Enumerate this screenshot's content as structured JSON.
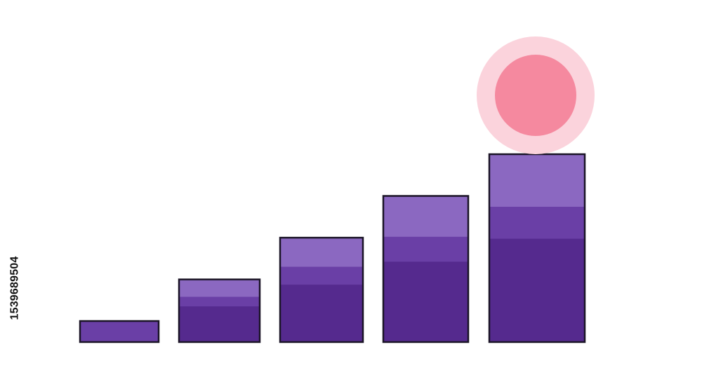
{
  "chart_data": {
    "type": "bar",
    "categories": [
      "",
      "",
      "",
      "",
      ""
    ],
    "values": [
      1,
      3,
      5,
      7,
      9
    ],
    "title": "",
    "xlabel": "",
    "ylabel": "",
    "ylim": [
      0,
      9
    ],
    "grid": false,
    "legend": "none"
  },
  "colors": {
    "bar_dark": "#552a8e",
    "bar_mid": "#6a3fa6",
    "bar_light": "#8b68c1",
    "bar_outline": "#1a1426",
    "ball_fill": "#f5899f",
    "ball_halo": "#fbd3dc",
    "background": "#ffffff"
  },
  "decoration": {
    "ball": "pink-circle-on-tallest-bar",
    "watermark_pattern": "stock-photo-watermark"
  },
  "watermark": {
    "id": "1539689504"
  }
}
